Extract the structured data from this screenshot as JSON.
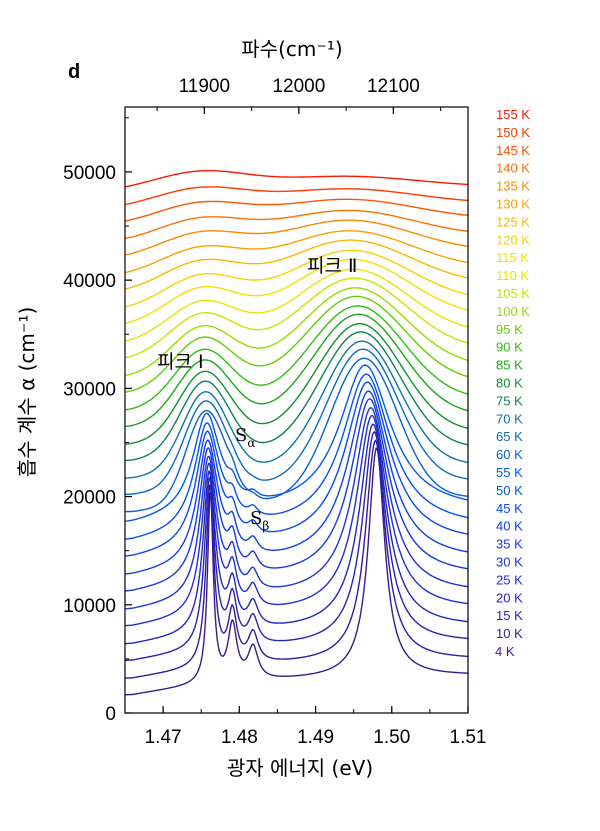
{
  "chart_data": {
    "type": "line",
    "panel_label": "d",
    "xlabel": "광자 에너지 (eV)",
    "ylabel": "흡수 계수 α (cm⁻¹)",
    "top_axis_label": "파수(cm⁻¹)",
    "xlim": [
      1.465,
      1.51
    ],
    "ylim": [
      0,
      56000
    ],
    "x_ticks": [
      "1.47",
      "1.48",
      "1.49",
      "1.50",
      "1.51"
    ],
    "y_ticks": [
      "0",
      "10000",
      "20000",
      "30000",
      "40000",
      "50000"
    ],
    "top_ticks": [
      "11900",
      "12000",
      "12100"
    ],
    "annotations": {
      "peak1": "피크 Ⅰ",
      "peak2": "피크 Ⅱ",
      "s_alpha": "Sα",
      "s_beta": "Sβ"
    },
    "temperatures": [
      "4 K",
      "10 K",
      "15 K",
      "20 K",
      "25 K",
      "30 K",
      "35 K",
      "40 K",
      "45 K",
      "50 K",
      "55 K",
      "60 K",
      "65 K",
      "70 K",
      "75 K",
      "80 K",
      "85 K",
      "90 K",
      "95 K",
      "100 K",
      "105 K",
      "110 K",
      "115 K",
      "120 K",
      "125 K",
      "130 K",
      "135 K",
      "140 K",
      "145 K",
      "150 K",
      "155 K"
    ],
    "series_colors": [
      "#3d1a8c",
      "#2f1ca0",
      "#2a22b0",
      "#2226c0",
      "#1f2fcf",
      "#1a34d8",
      "#1538e0",
      "#1040e8",
      "#0a48f0",
      "#0650f0",
      "#0058ee",
      "#0860d8",
      "#0b6cc0",
      "#0e75a0",
      "#108250",
      "#119030",
      "#18a818",
      "#30c010",
      "#60d000",
      "#98dc00",
      "#c8e400",
      "#e8e400",
      "#f4e000",
      "#fad000",
      "#fcb800",
      "#fda000",
      "#fe8800",
      "#fe7000",
      "#fe5600",
      "#fe3a00",
      "#fe1800"
    ],
    "baselines": [
      1600,
      3100,
      4700,
      6200,
      7800,
      9300,
      10900,
      12400,
      14000,
      15500,
      17100,
      18600,
      20200,
      21700,
      23300,
      24800,
      26400,
      27900,
      29500,
      31000,
      32600,
      34100,
      35700,
      37200,
      38800,
      40300,
      41900,
      43400,
      45000,
      46500,
      48100
    ]
  }
}
